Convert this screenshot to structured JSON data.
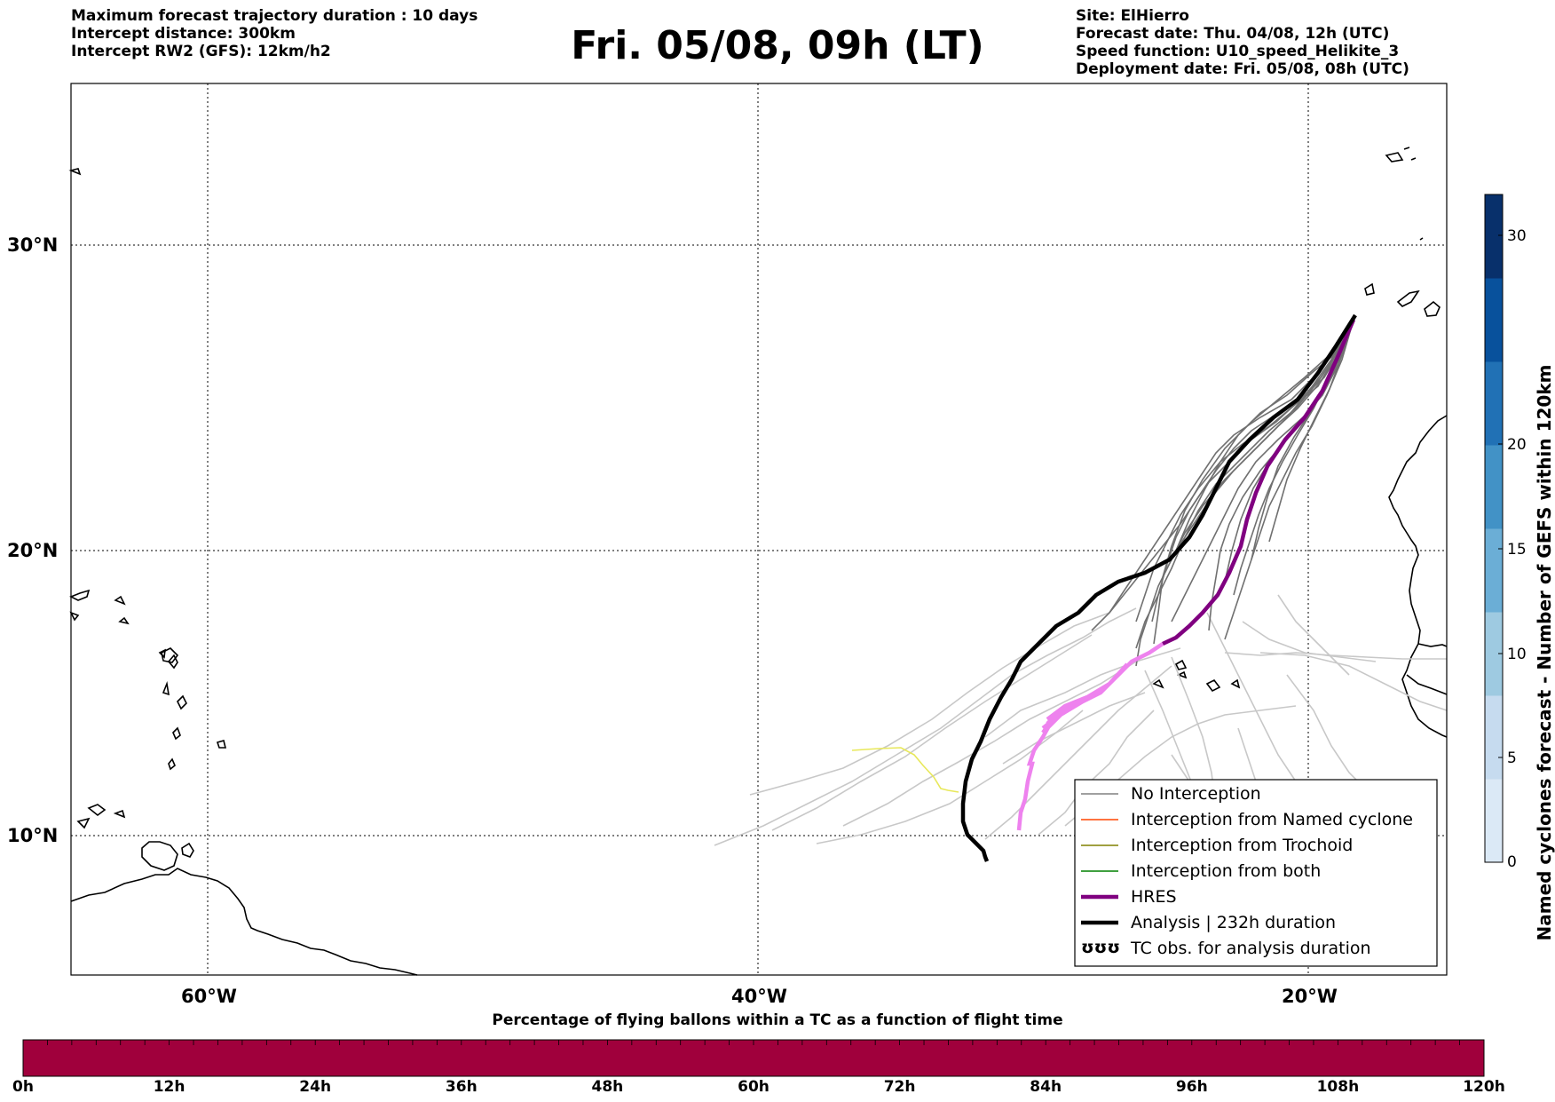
{
  "header": {
    "left": [
      "Maximum forecast trajectory duration : 10 days",
      "Intercept distance: 300km",
      "Intercept RW2 (GFS):  12km/h2"
    ],
    "title": "Fri. 05/08, 09h (LT)",
    "right": [
      "Site: ElHierro",
      "Forecast date: Thu. 04/08, 12h (UTC)",
      "Speed function: U10_speed_Helikite_3",
      "Deployment date: Fri. 05/08, 08h (UTC)"
    ]
  },
  "map": {
    "lon_range": [
      -65,
      15
    ],
    "lat_range": [
      5,
      35.3
    ],
    "lat_ticks": [
      "30°N",
      "20°N",
      "10°N"
    ],
    "lon_ticks": [
      "60°W",
      "40°W",
      "20°W"
    ],
    "grid": "dotted",
    "legend": {
      "placement": "bottom-right",
      "items": [
        {
          "label": "No Interception",
          "color": "#808080"
        },
        {
          "label": "Interception from Named cyclone",
          "color": "#ff4500"
        },
        {
          "label": "Interception from Trochoid",
          "color": "#808000"
        },
        {
          "label": "Interception from both",
          "color": "#008000"
        },
        {
          "label": "HRES",
          "color": "#800080"
        },
        {
          "label": "Analysis | 232h duration",
          "color": "#000000"
        },
        {
          "label": "TC obs. for analysis duration",
          "color": "#000000",
          "symbol": "ʊʊʊ"
        }
      ]
    }
  },
  "colorbar": {
    "title": "Named cyclones forecast - Number of GEFS within 120km",
    "ticks": [
      "30",
      "20",
      "15",
      "10",
      "5",
      "0"
    ],
    "colors": [
      "#dbe9f6",
      "#c6dbef",
      "#9ecae1",
      "#6baed6",
      "#4292c6",
      "#2171b5",
      "#08519c",
      "#08306b"
    ]
  },
  "bottom_bar": {
    "title": "Percentage of flying ballons within a TC as a function of flight time",
    "ticks": [
      "0h",
      "12h",
      "24h",
      "36h",
      "48h",
      "60h",
      "72h",
      "84h",
      "96h",
      "108h",
      "120h"
    ],
    "color": "#a0003c"
  }
}
